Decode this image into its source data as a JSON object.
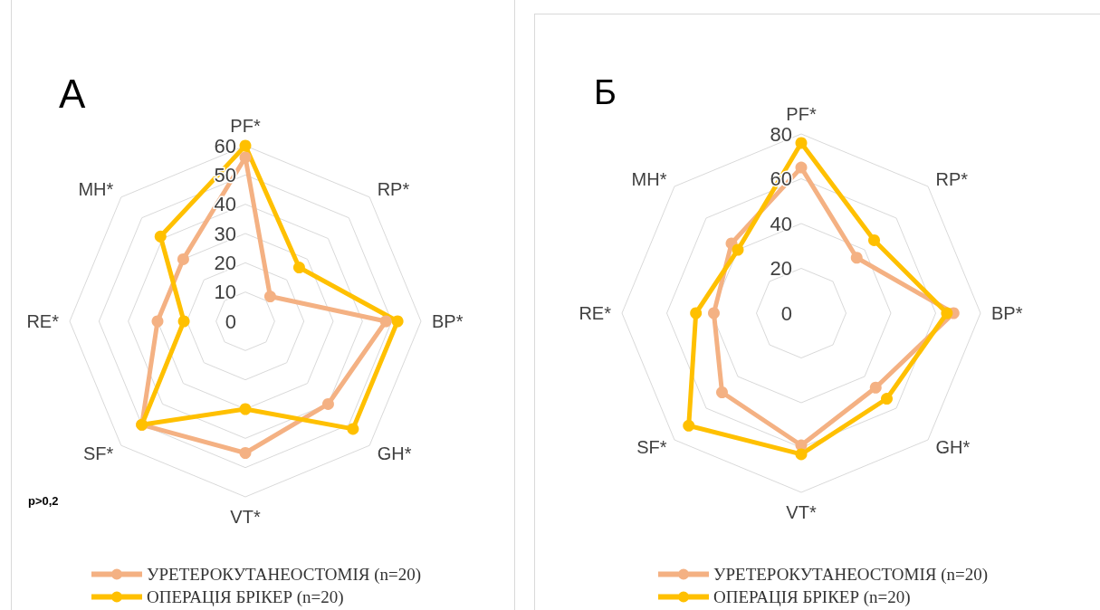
{
  "chart_data": [
    {
      "type": "radar",
      "title": "А",
      "categories": [
        "PF*",
        "RP*",
        "BP*",
        "GH*",
        "VT*",
        "SF*",
        "RE*",
        "MH*"
      ],
      "series": [
        {
          "name": "УРЕТЕРОКУТАНЕОСТОМІЯ (n=20)",
          "color": "#f4b183",
          "values": [
            56,
            12,
            48,
            40,
            45,
            50,
            30,
            30
          ]
        },
        {
          "name": "ОПЕРАЦІЯ БРІКЕР (n=20)",
          "color": "#ffc000",
          "values": [
            60,
            26,
            52,
            52,
            30,
            50,
            21,
            41
          ]
        }
      ],
      "ylim": [
        0,
        60
      ],
      "yticks": [
        0,
        10,
        20,
        30,
        40,
        50,
        60
      ],
      "grid": true,
      "legend": "bottom",
      "marker": "circle",
      "annotations": [
        "p>0,2"
      ]
    },
    {
      "type": "radar",
      "title": "Б",
      "categories": [
        "PF*",
        "RP*",
        "BP*",
        "GH*",
        "VT*",
        "SF*",
        "RE*",
        "MH*"
      ],
      "series": [
        {
          "name": "УРЕТЕРОКУТАНЕОСТОМІЯ (n=20)",
          "color": "#f4b183",
          "values": [
            65,
            35,
            68,
            47,
            59,
            50,
            39,
            44
          ]
        },
        {
          "name": "ОПЕРАЦІЯ БРІКЕР (n=20)",
          "color": "#ffc000",
          "values": [
            76,
            46,
            65,
            54,
            63,
            71,
            47,
            40
          ]
        }
      ],
      "ylim": [
        0,
        80
      ],
      "yticks": [
        0,
        20,
        40,
        60,
        80
      ],
      "grid": true,
      "legend": "bottom",
      "marker": "circle"
    }
  ]
}
